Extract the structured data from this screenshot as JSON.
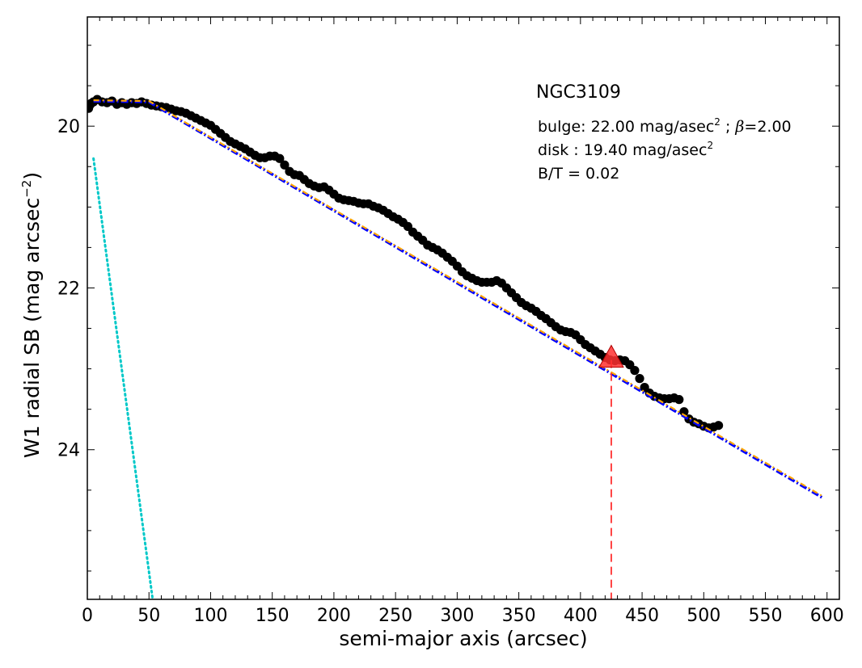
{
  "chart_data": {
    "type": "scatter",
    "annotation_title": "NGC3109",
    "annotations": {
      "bulge_prefix": "bulge: 22.00 mag/asec",
      "bulge_exp": "2",
      "bulge_sep": " ; ",
      "bulge_beta_symbol": "β",
      "bulge_beta_value": "=2.00",
      "disk_prefix": "disk  : 19.40 mag/asec",
      "disk_exp": "2",
      "bt_text": "B/T = 0.02"
    },
    "xlabel": "semi-major axis (arcsec)",
    "ylabel_main": "W1 radial SB (mag arcsec",
    "ylabel_exp": "−2",
    "ylabel_close": ")",
    "xlim": [
      0,
      610
    ],
    "ylim": [
      25.85,
      18.65
    ],
    "y_inverted": true,
    "xticks": [
      0,
      50,
      100,
      150,
      200,
      250,
      300,
      350,
      400,
      450,
      500,
      550,
      600
    ],
    "xtick_labels": [
      "0",
      "50",
      "100",
      "150",
      "200",
      "250",
      "300",
      "350",
      "400",
      "450",
      "500",
      "550",
      "600"
    ],
    "yticks": [
      20,
      22,
      24
    ],
    "ytick_labels": [
      "20",
      "22",
      "24"
    ],
    "grid": false,
    "colors": {
      "points": "#000000",
      "total_model": "#0000ff",
      "disk_model": "#ffa500",
      "bulge_model": "#00c8c8",
      "marker": "#ff3030"
    },
    "points": [
      [
        1,
        19.78
      ],
      [
        2,
        19.74
      ],
      [
        3,
        19.72
      ],
      [
        5,
        19.7
      ],
      [
        8,
        19.67
      ],
      [
        12,
        19.7
      ],
      [
        16,
        19.71
      ],
      [
        20,
        19.69
      ],
      [
        24,
        19.73
      ],
      [
        28,
        19.71
      ],
      [
        32,
        19.73
      ],
      [
        36,
        19.71
      ],
      [
        40,
        19.72
      ],
      [
        44,
        19.7
      ],
      [
        48,
        19.72
      ],
      [
        52,
        19.74
      ],
      [
        56,
        19.75
      ],
      [
        60,
        19.76
      ],
      [
        64,
        19.77
      ],
      [
        68,
        19.79
      ],
      [
        72,
        19.81
      ],
      [
        76,
        19.82
      ],
      [
        80,
        19.84
      ],
      [
        84,
        19.87
      ],
      [
        88,
        19.9
      ],
      [
        92,
        19.93
      ],
      [
        96,
        19.96
      ],
      [
        100,
        19.99
      ],
      [
        104,
        20.04
      ],
      [
        108,
        20.09
      ],
      [
        112,
        20.14
      ],
      [
        116,
        20.19
      ],
      [
        120,
        20.22
      ],
      [
        124,
        20.25
      ],
      [
        128,
        20.28
      ],
      [
        132,
        20.32
      ],
      [
        136,
        20.36
      ],
      [
        140,
        20.39
      ],
      [
        144,
        20.39
      ],
      [
        148,
        20.37
      ],
      [
        152,
        20.37
      ],
      [
        156,
        20.4
      ],
      [
        160,
        20.48
      ],
      [
        164,
        20.56
      ],
      [
        168,
        20.6
      ],
      [
        172,
        20.61
      ],
      [
        176,
        20.66
      ],
      [
        180,
        20.71
      ],
      [
        184,
        20.74
      ],
      [
        188,
        20.76
      ],
      [
        192,
        20.75
      ],
      [
        196,
        20.79
      ],
      [
        200,
        20.84
      ],
      [
        204,
        20.89
      ],
      [
        208,
        20.91
      ],
      [
        212,
        20.92
      ],
      [
        216,
        20.93
      ],
      [
        220,
        20.95
      ],
      [
        224,
        20.96
      ],
      [
        228,
        20.96
      ],
      [
        232,
        20.99
      ],
      [
        236,
        21.01
      ],
      [
        240,
        21.04
      ],
      [
        244,
        21.08
      ],
      [
        248,
        21.12
      ],
      [
        252,
        21.15
      ],
      [
        256,
        21.19
      ],
      [
        260,
        21.24
      ],
      [
        264,
        21.31
      ],
      [
        268,
        21.36
      ],
      [
        272,
        21.41
      ],
      [
        276,
        21.47
      ],
      [
        280,
        21.5
      ],
      [
        284,
        21.53
      ],
      [
        288,
        21.57
      ],
      [
        292,
        21.62
      ],
      [
        296,
        21.67
      ],
      [
        300,
        21.73
      ],
      [
        304,
        21.8
      ],
      [
        308,
        21.85
      ],
      [
        312,
        21.88
      ],
      [
        316,
        21.91
      ],
      [
        320,
        21.93
      ],
      [
        324,
        21.93
      ],
      [
        328,
        21.93
      ],
      [
        332,
        21.91
      ],
      [
        336,
        21.94
      ],
      [
        340,
        22.0
      ],
      [
        344,
        22.06
      ],
      [
        348,
        22.12
      ],
      [
        352,
        22.18
      ],
      [
        356,
        22.22
      ],
      [
        360,
        22.25
      ],
      [
        364,
        22.29
      ],
      [
        368,
        22.34
      ],
      [
        372,
        22.38
      ],
      [
        376,
        22.43
      ],
      [
        380,
        22.48
      ],
      [
        384,
        22.52
      ],
      [
        388,
        22.54
      ],
      [
        392,
        22.55
      ],
      [
        396,
        22.58
      ],
      [
        400,
        22.64
      ],
      [
        404,
        22.7
      ],
      [
        408,
        22.74
      ],
      [
        412,
        22.78
      ],
      [
        416,
        22.82
      ],
      [
        420,
        22.86
      ],
      [
        424,
        22.89
      ],
      [
        428,
        22.9
      ],
      [
        432,
        22.89
      ],
      [
        436,
        22.9
      ],
      [
        440,
        22.95
      ],
      [
        444,
        23.02
      ],
      [
        448,
        23.12
      ],
      [
        452,
        23.23
      ],
      [
        456,
        23.3
      ],
      [
        460,
        23.34
      ],
      [
        464,
        23.36
      ],
      [
        468,
        23.37
      ],
      [
        472,
        23.37
      ],
      [
        476,
        23.36
      ],
      [
        480,
        23.38
      ],
      [
        484,
        23.53
      ],
      [
        488,
        23.62
      ],
      [
        492,
        23.66
      ],
      [
        496,
        23.68
      ],
      [
        500,
        23.71
      ],
      [
        504,
        23.73
      ],
      [
        508,
        23.72
      ],
      [
        512,
        23.7
      ]
    ],
    "total_model": {
      "x_start": 5,
      "y_start": 19.69,
      "x_break": 50,
      "y_break": 19.7,
      "x_end": 597,
      "y_end": 24.6
    },
    "disk_model": {
      "x_start": 5,
      "y_start": 19.68,
      "x_break": 50,
      "y_break": 19.69,
      "x_end": 597,
      "y_end": 24.58
    },
    "bulge_model": {
      "x_start": 5,
      "y_start": 20.4,
      "x_end": 53,
      "y_end": 25.85
    },
    "marker": {
      "x": 425,
      "y": 22.89
    }
  }
}
